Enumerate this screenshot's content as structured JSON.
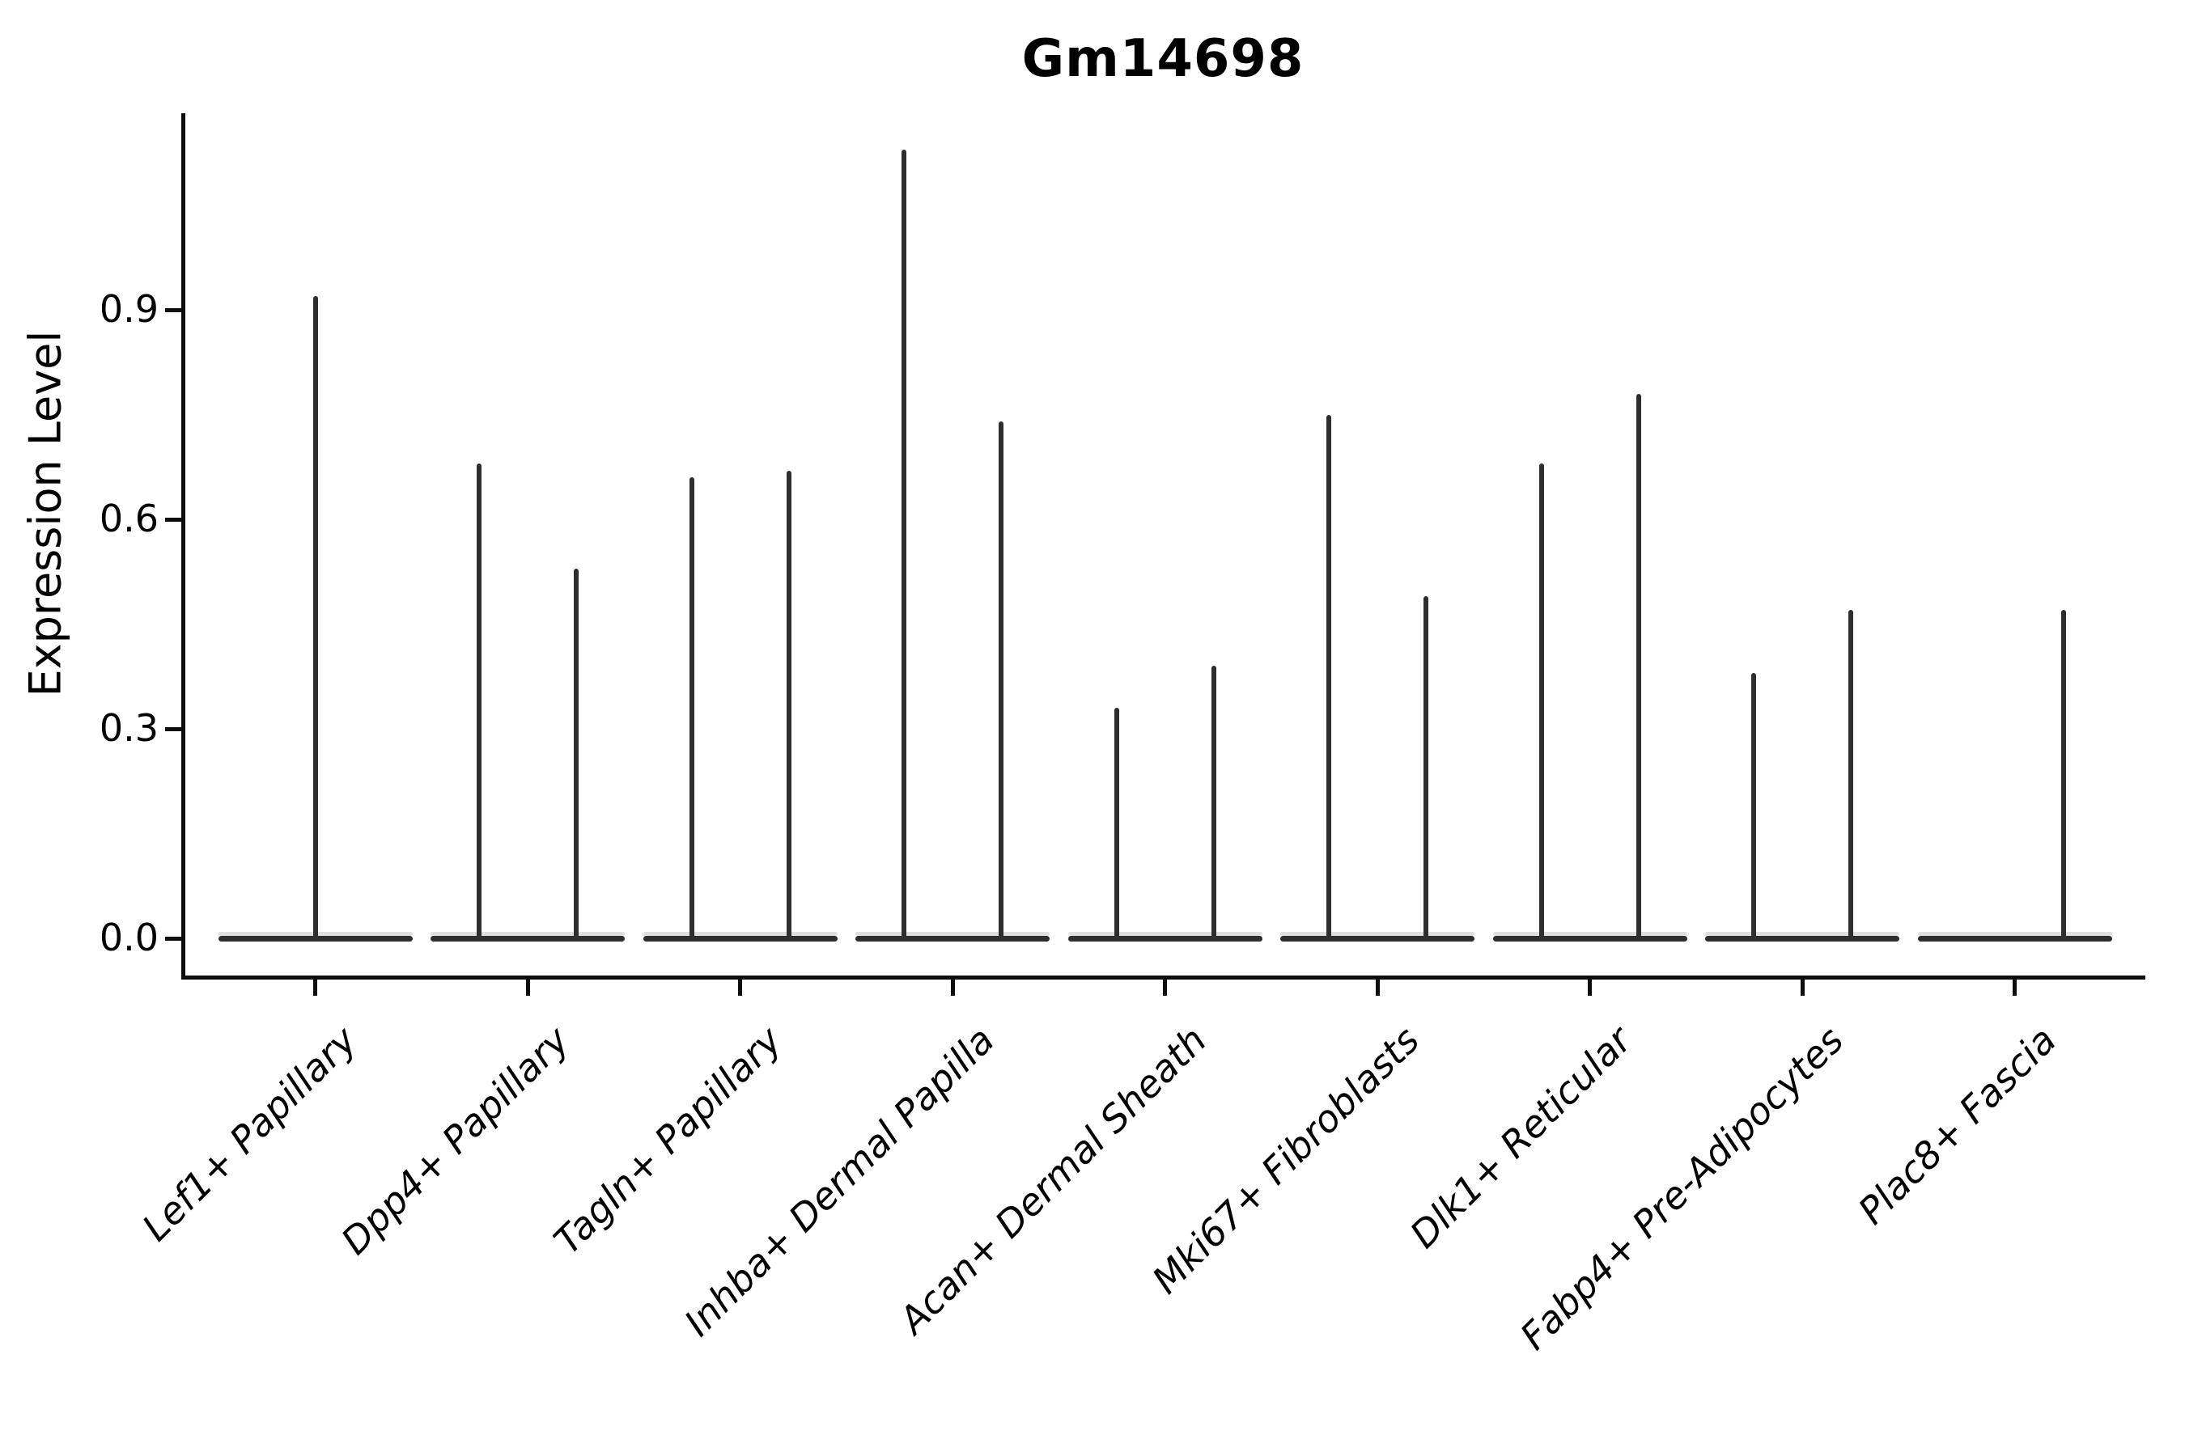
{
  "chart_data": {
    "type": "violin",
    "title": "Gm14698",
    "xlabel": "",
    "ylabel": "Expression Level",
    "yticks": [
      0.0,
      0.3,
      0.6,
      0.9
    ],
    "ytick_labels": [
      "0.0",
      "0.3",
      "0.6",
      "0.9"
    ],
    "ylim": [
      0,
      1.18
    ],
    "grid": false,
    "legend": null,
    "background_color": "#ffffff",
    "violin_stroke_color": "#2e2e2e",
    "axis_color": "#0d0d0d",
    "text_color": "#000000",
    "categories": [
      "Lef1+ Papillary",
      "Dpp4+ Papillary",
      "Tagln+ Papillary",
      "Inhba+ Dermal Papilla",
      "Acan+ Dermal Sheath",
      "Mki67+ Fibroblasts",
      "Dlk1+ Reticular",
      "Fabp4+ Pre-Adipocytes",
      "Plac8+ Fascia"
    ],
    "violins": [
      {
        "category": "Lef1+ Papillary",
        "baseline_value": 0.0,
        "spikes": [
          {
            "position": "center",
            "value": 0.92
          }
        ]
      },
      {
        "category": "Dpp4+ Papillary",
        "baseline_value": 0.0,
        "spikes": [
          {
            "position": "left",
            "value": 0.68
          },
          {
            "position": "right",
            "value": 0.53
          }
        ]
      },
      {
        "category": "Tagln+ Papillary",
        "baseline_value": 0.0,
        "spikes": [
          {
            "position": "left",
            "value": 0.66
          },
          {
            "position": "right",
            "value": 0.67
          }
        ]
      },
      {
        "category": "Inhba+ Dermal Papilla",
        "baseline_value": 0.0,
        "spikes": [
          {
            "position": "left",
            "value": 1.13
          },
          {
            "position": "right",
            "value": 0.74
          }
        ]
      },
      {
        "category": "Acan+ Dermal Sheath",
        "baseline_value": 0.0,
        "spikes": [
          {
            "position": "left",
            "value": 0.33
          },
          {
            "position": "right",
            "value": 0.39
          }
        ]
      },
      {
        "category": "Mki67+ Fibroblasts",
        "baseline_value": 0.0,
        "spikes": [
          {
            "position": "left",
            "value": 0.75
          },
          {
            "position": "right",
            "value": 0.49
          }
        ]
      },
      {
        "category": "Dlk1+ Reticular",
        "baseline_value": 0.0,
        "spikes": [
          {
            "position": "left",
            "value": 0.68
          },
          {
            "position": "right",
            "value": 0.78
          }
        ]
      },
      {
        "category": "Fabp4+ Pre-Adipocytes",
        "baseline_value": 0.0,
        "spikes": [
          {
            "position": "left",
            "value": 0.38
          },
          {
            "position": "right",
            "value": 0.47
          }
        ]
      },
      {
        "category": "Plac8+ Fascia",
        "baseline_value": 0.0,
        "spikes": [
          {
            "position": "right",
            "value": 0.47
          }
        ]
      }
    ]
  }
}
